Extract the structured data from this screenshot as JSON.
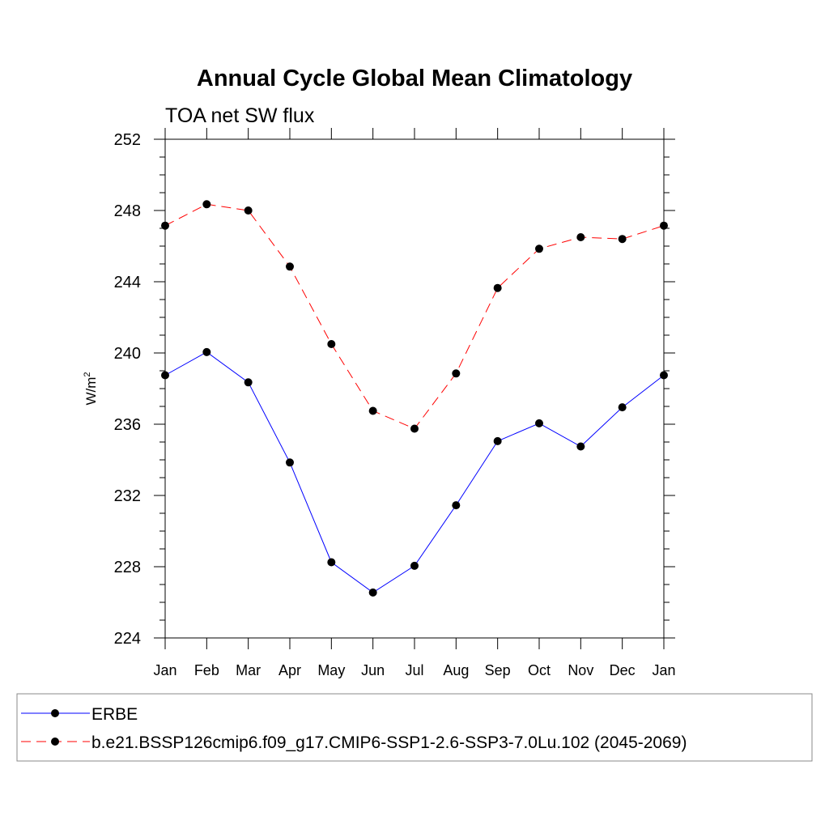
{
  "chart_data": {
    "type": "line",
    "title": "Annual Cycle Global Mean Climatology",
    "subtitle": "TOA net SW flux",
    "ylabel": "W/m",
    "ylabel_sup": "2",
    "ylim": [
      224,
      252
    ],
    "yticks": [
      224,
      228,
      232,
      236,
      240,
      244,
      248,
      252
    ],
    "y_minor_step": 1,
    "categories": [
      "Jan",
      "Feb",
      "Mar",
      "Apr",
      "May",
      "Jun",
      "Jul",
      "Aug",
      "Sep",
      "Oct",
      "Nov",
      "Dec",
      "Jan"
    ],
    "grid": false,
    "legend_placement": "bottom",
    "series": [
      {
        "name": "ERBE",
        "color": "#0000ff",
        "dash": "solid",
        "marker": "filled-circle",
        "values": [
          238.75,
          240.05,
          238.35,
          233.85,
          228.25,
          226.55,
          228.05,
          231.45,
          235.05,
          236.05,
          234.75,
          236.95,
          238.75
        ]
      },
      {
        "name": "b.e21.BSSP126cmip6.f09_g17.CMIP6-SSP1-2.6-SSP3-7.0Lu.102 (2045-2069)",
        "color": "#ff0000",
        "dash": "dashed",
        "marker": "filled-circle",
        "values": [
          247.15,
          248.35,
          248.0,
          244.85,
          240.5,
          236.75,
          235.75,
          238.85,
          243.65,
          245.85,
          246.5,
          246.4,
          247.15
        ]
      }
    ]
  }
}
